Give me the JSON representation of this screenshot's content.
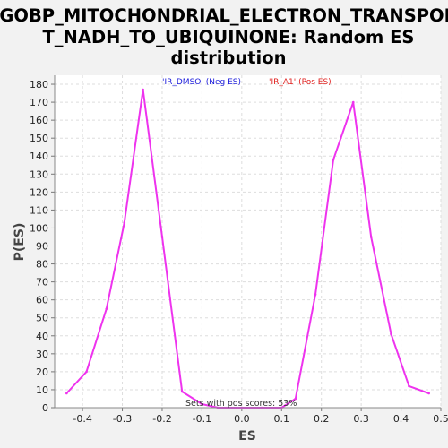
{
  "chart_data": {
    "type": "line",
    "title_lines": [
      "GOBP_MITOCHONDRIAL_ELECTRON_TRANSPOR",
      "T_NADH_TO_UBIQUINONE: Random ES",
      "distribution"
    ],
    "xlabel": "ES",
    "ylabel": "P(ES)",
    "xlim": [
      -0.47,
      0.5
    ],
    "ylim": [
      0,
      185
    ],
    "x_ticks": [
      -0.4,
      -0.3,
      -0.2,
      -0.1,
      0.0,
      0.1,
      0.2,
      0.3,
      0.4,
      0.5
    ],
    "x_tick_labels": [
      "-0.4",
      "-0.3",
      "-0.2",
      "-0.1",
      "0.0",
      "0.1",
      "0.2",
      "0.3",
      "0.4",
      "0.5"
    ],
    "y_ticks": [
      0,
      10,
      20,
      30,
      40,
      50,
      60,
      70,
      80,
      90,
      100,
      110,
      120,
      130,
      140,
      150,
      160,
      170,
      180
    ],
    "y_tick_labels": [
      "0",
      "10",
      "20",
      "30",
      "40",
      "50",
      "60",
      "70",
      "80",
      "90",
      "100",
      "110",
      "120",
      "130",
      "140",
      "150",
      "160",
      "170",
      "180"
    ],
    "grid": true,
    "legend_entries": [
      {
        "label": "'IR_DMSO' (Neg ES)",
        "color": "#1a1adb"
      },
      {
        "label": "'IR_A1' (Pos ES)",
        "color": "#e0201e"
      }
    ],
    "annotation": "Sets with pos scores: 53%",
    "line_color": "#ee33ee",
    "series": [
      {
        "x": [
          -0.44,
          -0.39,
          -0.34,
          -0.295,
          -0.248,
          -0.2,
          -0.15,
          -0.1,
          -0.06,
          0.0,
          0.05,
          0.1,
          0.135,
          0.185,
          0.23,
          0.28,
          0.325,
          0.375,
          0.42,
          0.47
        ],
        "y": [
          8,
          20,
          55,
          103,
          177,
          95,
          9,
          2,
          0,
          0,
          0,
          0,
          5,
          63,
          138,
          170,
          95,
          41,
          12,
          8
        ]
      }
    ]
  }
}
